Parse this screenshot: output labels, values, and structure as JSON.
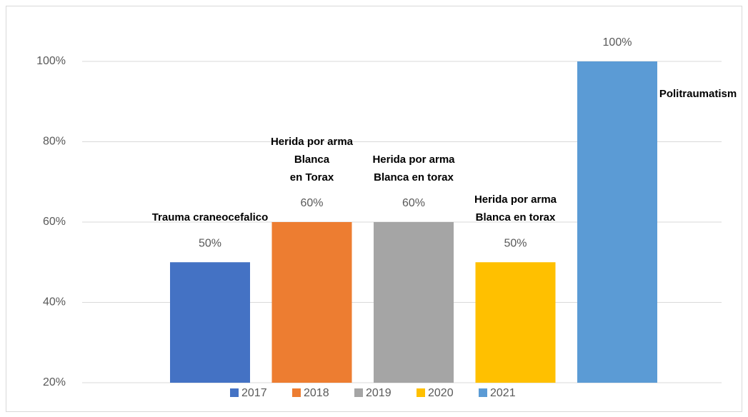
{
  "chart_data": {
    "type": "bar",
    "ylim": [
      20,
      100
    ],
    "yticks": [
      {
        "value": 20,
        "label": "20%"
      },
      {
        "value": 40,
        "label": "40%"
      },
      {
        "value": 60,
        "label": "60%"
      },
      {
        "value": 80,
        "label": "80%"
      },
      {
        "value": 100,
        "label": "100%"
      }
    ],
    "grid": true,
    "legend": "bottom",
    "series": [
      {
        "name": "2017",
        "color": "#4472c4",
        "values": [
          50
        ],
        "value_labels": [
          "50%"
        ],
        "annotation": [
          "Trauma craneocefalico"
        ]
      },
      {
        "name": "2018",
        "color": "#ed7d31",
        "values": [
          60
        ],
        "value_labels": [
          "60%"
        ],
        "annotation": [
          "Herida por arma",
          "Blanca",
          "en Torax"
        ]
      },
      {
        "name": "2019",
        "color": "#a5a5a5",
        "values": [
          60
        ],
        "value_labels": [
          "60%"
        ],
        "annotation": [
          "Herida por arma",
          "Blanca en torax"
        ]
      },
      {
        "name": "2020",
        "color": "#ffc000",
        "values": [
          50
        ],
        "value_labels": [
          "50%"
        ],
        "annotation": [
          "Herida por arma",
          "Blanca en torax"
        ]
      },
      {
        "name": "2021",
        "color": "#5b9bd5",
        "values": [
          100
        ],
        "value_labels": [
          "100%"
        ],
        "annotation": [
          "Politraumatism"
        ]
      }
    ]
  }
}
